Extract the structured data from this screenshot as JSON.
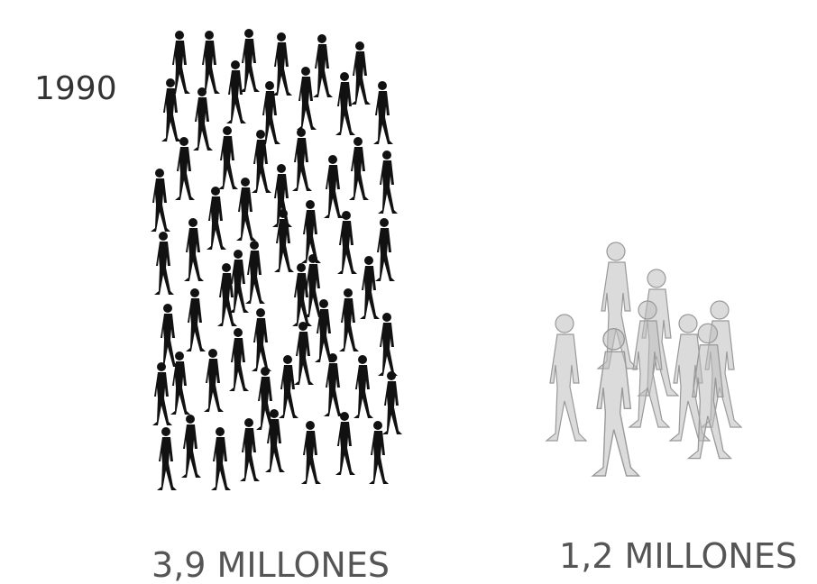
{
  "year": "1990",
  "groups": [
    {
      "label": "3,9 MILLONES"
    },
    {
      "label": "1,2 MILLONES"
    }
  ]
}
